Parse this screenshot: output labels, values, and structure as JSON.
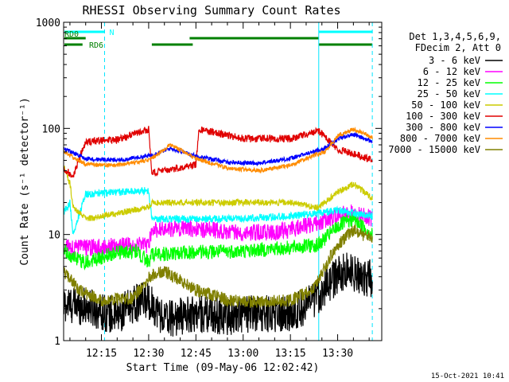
{
  "chart_data": {
    "type": "line",
    "title": "RHESSI Observing Summary Count Rates",
    "xlabel": "Start Time (09-May-06 12:02:42)",
    "ylabel": "Count Rate (s⁻¹ detector⁻¹)",
    "x_start": "12:02:42",
    "xlim": [
      "12:03",
      "13:44"
    ],
    "ylim": [
      1,
      1000
    ],
    "y_scale": "log",
    "x_ticks": [
      "12:15",
      "12:30",
      "12:45",
      "13:00",
      "13:15",
      "13:30"
    ],
    "y_ticks": [
      "1",
      "10",
      "100",
      "1000"
    ],
    "grid": false,
    "legend_position": "right",
    "legend_header": [
      "Det 1,3,4,5,6,9,",
      "FDecim 2, Att 0"
    ],
    "footer_date": "15-Oct-2021 10:41",
    "flags": [
      {
        "label": "N",
        "color": "#00ffff",
        "segments": [
          [
            "12:03",
            "12:16"
          ],
          [
            "13:24",
            "13:41"
          ]
        ]
      },
      {
        "label": "RD0",
        "color": "#008000",
        "segments": [
          [
            "12:03",
            "12:10"
          ],
          [
            "12:43",
            "13:24"
          ]
        ]
      },
      {
        "label": "RD6",
        "color": "#008000",
        "segments": [
          [
            "12:03",
            "12:09"
          ],
          [
            "12:31",
            "12:44"
          ],
          [
            "13:24",
            "13:41"
          ]
        ]
      }
    ],
    "night_markers": [
      "12:03",
      "13:24"
    ],
    "saa_markers": [
      "12:16",
      "13:41"
    ],
    "series": [
      {
        "name": "3 - 6 keV",
        "color": "#000000",
        "x": [
          "12:03",
          "12:10",
          "12:20",
          "12:25",
          "12:30",
          "12:35",
          "12:45",
          "12:55",
          "13:05",
          "13:15",
          "13:22",
          "13:26",
          "13:30",
          "13:33",
          "13:36",
          "13:41"
        ],
        "values": [
          2.2,
          2.1,
          1.7,
          2.2,
          2.4,
          1.6,
          1.8,
          1.7,
          1.8,
          1.8,
          2.3,
          3.2,
          4.1,
          4.6,
          4.2,
          3.8
        ]
      },
      {
        "name": "6 - 12 keV",
        "color": "#ff00ff",
        "x": [
          "12:03",
          "12:10",
          "12:20",
          "12:30",
          "12:31",
          "12:40",
          "12:50",
          "13:00",
          "13:10",
          "13:20",
          "13:24",
          "13:30",
          "13:35",
          "13:41"
        ],
        "values": [
          7.5,
          7.5,
          7.8,
          8.0,
          11.0,
          11.5,
          11.0,
          10.5,
          10.5,
          12.0,
          13.0,
          15.0,
          16.5,
          14.0
        ]
      },
      {
        "name": "12 - 25 keV",
        "color": "#00ff00",
        "x": [
          "12:03",
          "12:06",
          "12:10",
          "12:20",
          "12:26",
          "12:30",
          "12:31",
          "12:45",
          "13:00",
          "13:15",
          "13:24",
          "13:30",
          "13:35",
          "13:41"
        ],
        "values": [
          7.0,
          6.0,
          5.5,
          6.8,
          7.0,
          5.5,
          6.5,
          6.8,
          7.0,
          7.5,
          8.0,
          12.0,
          14.0,
          10.0
        ]
      },
      {
        "name": "25 - 50 keV",
        "color": "#00ffff",
        "x": [
          "12:03",
          "12:05",
          "12:06",
          "12:10",
          "12:20",
          "12:30",
          "12:31",
          "12:45",
          "13:00",
          "13:15",
          "13:24",
          "13:30",
          "13:35",
          "13:41"
        ],
        "values": [
          16.0,
          20.0,
          10.0,
          24.0,
          25.0,
          26.0,
          14.0,
          14.0,
          14.0,
          15.0,
          16.0,
          17.0,
          16.0,
          15.0
        ]
      },
      {
        "name": "50 - 100 keV",
        "color": "#cccc00",
        "x": [
          "12:03",
          "12:05",
          "12:06",
          "12:10",
          "12:30",
          "12:31",
          "12:45",
          "13:00",
          "13:15",
          "13:24",
          "13:30",
          "13:35",
          "13:41"
        ],
        "values": [
          45.0,
          30.0,
          18.0,
          14.0,
          18.0,
          20.0,
          20.0,
          20.0,
          20.0,
          18.0,
          25.0,
          30.0,
          22.0
        ]
      },
      {
        "name": "100 - 300 keV",
        "color": "#e00000",
        "x": [
          "12:03",
          "12:06",
          "12:10",
          "12:20",
          "12:30",
          "12:31",
          "12:45",
          "12:46",
          "13:00",
          "13:15",
          "13:24",
          "13:30",
          "13:35",
          "13:41"
        ],
        "values": [
          42.0,
          36.0,
          75.0,
          78.0,
          98.0,
          38.0,
          46.0,
          98.0,
          80.0,
          80.0,
          95.0,
          63.0,
          58.0,
          50.0
        ]
      },
      {
        "name": "300 - 800 keV",
        "color": "#0000ff",
        "x": [
          "12:03",
          "12:10",
          "12:20",
          "12:30",
          "12:37",
          "12:45",
          "12:55",
          "13:05",
          "13:15",
          "13:22",
          "13:26",
          "13:30",
          "13:35",
          "13:41"
        ],
        "values": [
          65.0,
          52.0,
          50.0,
          55.0,
          65.0,
          55.0,
          48.0,
          47.0,
          52.0,
          60.0,
          65.0,
          80.0,
          88.0,
          75.0
        ]
      },
      {
        "name": "800 - 7000 keV",
        "color": "#ff8c00",
        "x": [
          "12:03",
          "12:10",
          "12:20",
          "12:30",
          "12:37",
          "12:45",
          "12:55",
          "13:05",
          "13:15",
          "13:22",
          "13:26",
          "13:30",
          "13:35",
          "13:41"
        ],
        "values": [
          60.0,
          46.0,
          45.0,
          50.0,
          70.0,
          52.0,
          42.0,
          40.0,
          45.0,
          55.0,
          60.0,
          85.0,
          98.0,
          82.0
        ]
      },
      {
        "name": "7000 - 15000 keV",
        "color": "#808000",
        "x": [
          "12:03",
          "12:08",
          "12:15",
          "12:25",
          "12:30",
          "12:35",
          "12:45",
          "12:55",
          "13:05",
          "13:15",
          "13:22",
          "13:26",
          "13:30",
          "13:35",
          "13:41"
        ],
        "values": [
          4.5,
          3.0,
          2.4,
          2.5,
          4.0,
          4.5,
          3.0,
          2.4,
          2.3,
          2.4,
          3.0,
          5.0,
          8.0,
          11.0,
          9.0
        ]
      }
    ]
  }
}
